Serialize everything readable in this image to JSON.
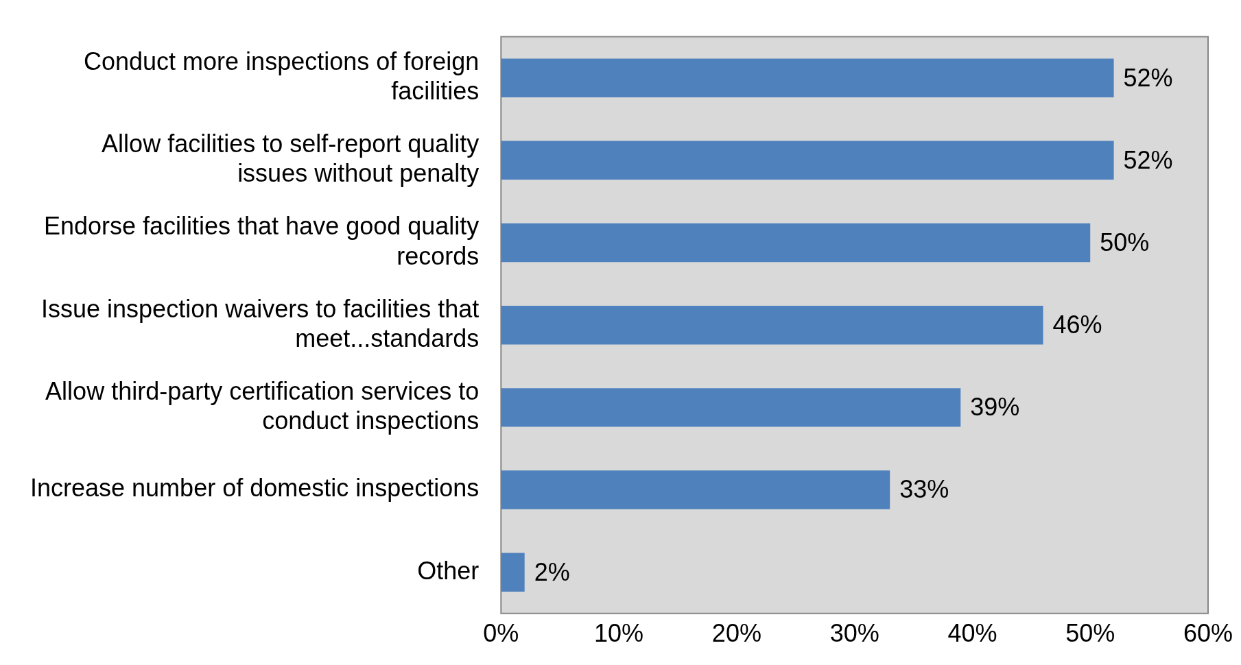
{
  "chart_data": {
    "type": "bar",
    "orientation": "horizontal",
    "categories": [
      "Conduct more inspections of foreign facilities",
      "Allow facilities to self-report quality issues without penalty",
      "Endorse facilities that have good quality records",
      "Issue inspection waivers to facilities that meet...standards",
      "Allow third-party certification services to conduct inspections",
      "Increase number of domestic inspections",
      "Other"
    ],
    "values": [
      52,
      52,
      50,
      46,
      39,
      33,
      2
    ],
    "value_labels": [
      "52%",
      "52%",
      "50%",
      "46%",
      "39%",
      "33%",
      "2%"
    ],
    "color": "#4f81bd",
    "xlim": [
      0,
      60
    ],
    "xticks": [
      {
        "value": 0,
        "label": "0%"
      },
      {
        "value": 10,
        "label": "10%"
      },
      {
        "value": 20,
        "label": "20%"
      },
      {
        "value": 30,
        "label": "30%"
      },
      {
        "value": 40,
        "label": "40%"
      },
      {
        "value": 50,
        "label": "50%"
      },
      {
        "value": 60,
        "label": "60%"
      }
    ],
    "grid": false,
    "legend": false
  }
}
